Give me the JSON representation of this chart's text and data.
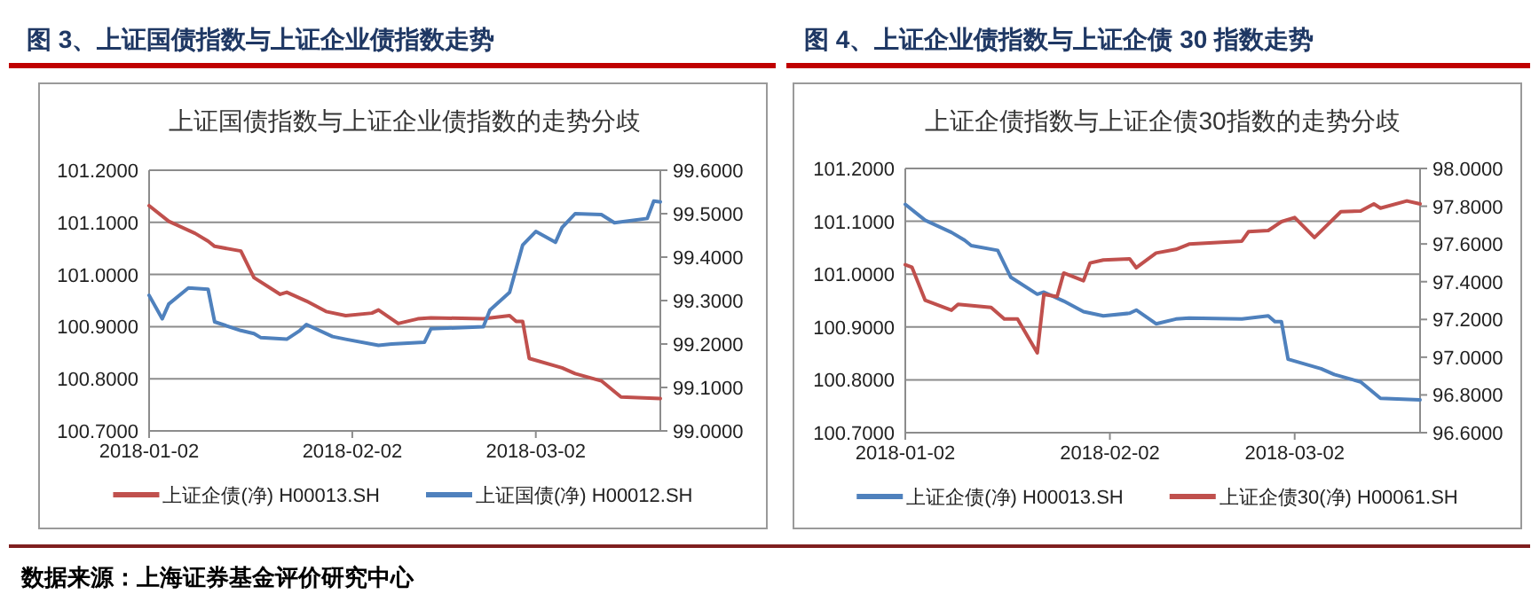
{
  "chart_data": [
    {
      "type": "line",
      "title": "图 3、上证国债指数与上证企业债指数走势",
      "subtitle": "上证国债指数与上证企业债指数的走势分歧",
      "annotations": [
        "数据来源：上海证券基金评价研究中心"
      ],
      "xlim": [
        "2018-01-02",
        "2018-03-21"
      ],
      "xticks": [
        "2018-01-02",
        "2018-02-02",
        "2018-03-02"
      ],
      "ylim": [
        100.7,
        101.2
      ],
      "yticks": [
        {
          "value": 100.7,
          "label": "100.7000"
        },
        {
          "value": 100.8,
          "label": "100.8000"
        },
        {
          "value": 100.9,
          "label": "100.9000"
        },
        {
          "value": 101.0,
          "label": "101.0000"
        },
        {
          "value": 101.1,
          "label": "101.1000"
        },
        {
          "value": 101.2,
          "label": "101.2000"
        }
      ],
      "y2lim": [
        99.0,
        99.6
      ],
      "y2ticks": [
        {
          "value": 99.0,
          "label": "99.0000"
        },
        {
          "value": 99.1,
          "label": "99.1000"
        },
        {
          "value": 99.2,
          "label": "99.2000"
        },
        {
          "value": 99.3,
          "label": "99.3000"
        },
        {
          "value": 99.4,
          "label": "99.4000"
        },
        {
          "value": 99.5,
          "label": "99.5000"
        },
        {
          "value": 99.6,
          "label": "99.6000"
        }
      ],
      "grid": "y",
      "legend": "bottom",
      "series": [
        {
          "name": "上证企债(净) H00013.SH",
          "color": "#c0504d",
          "x": [
            "2018-01-02",
            "2018-01-05",
            "2018-01-09",
            "2018-01-11",
            "2018-01-12",
            "2018-01-16",
            "2018-01-18",
            "2018-01-22",
            "2018-01-23",
            "2018-01-26",
            "2018-01-29",
            "2018-02-01",
            "2018-02-05",
            "2018-02-06",
            "2018-02-09",
            "2018-02-12",
            "2018-02-14",
            "2018-02-22",
            "2018-02-26",
            "2018-02-27",
            "2018-02-28",
            "2018-03-01",
            "2018-03-06",
            "2018-03-08",
            "2018-03-12",
            "2018-03-15",
            "2018-03-21"
          ],
          "values": [
            101.132,
            101.102,
            101.079,
            101.064,
            101.054,
            101.045,
            100.994,
            100.962,
            100.966,
            100.949,
            100.929,
            100.921,
            100.926,
            100.932,
            100.906,
            100.915,
            100.917,
            100.915,
            100.921,
            100.91,
            100.91,
            100.839,
            100.821,
            100.81,
            100.796,
            100.765,
            100.762
          ]
        },
        {
          "name": "上证国债(净) H00012.SH",
          "color": "#4f81bd",
          "axis": "y2",
          "x": [
            "2018-01-02",
            "2018-01-04",
            "2018-01-05",
            "2018-01-08",
            "2018-01-11",
            "2018-01-12",
            "2018-01-16",
            "2018-01-18",
            "2018-01-19",
            "2018-01-23",
            "2018-01-25",
            "2018-01-26",
            "2018-01-30",
            "2018-02-01",
            "2018-02-06",
            "2018-02-08",
            "2018-02-13",
            "2018-02-14",
            "2018-02-22",
            "2018-02-23",
            "2018-02-26",
            "2018-02-28",
            "2018-03-02",
            "2018-03-05",
            "2018-03-06",
            "2018-03-08",
            "2018-03-12",
            "2018-03-14",
            "2018-03-19",
            "2018-03-20",
            "2018-03-21"
          ],
          "values": [
            99.312,
            99.258,
            99.292,
            99.329,
            99.326,
            99.251,
            99.231,
            99.224,
            99.215,
            99.211,
            99.231,
            99.245,
            99.217,
            99.211,
            99.197,
            99.2,
            99.204,
            99.235,
            99.24,
            99.278,
            99.319,
            99.428,
            99.459,
            99.434,
            99.468,
            99.5,
            99.498,
            99.479,
            99.489,
            99.529,
            99.527
          ]
        }
      ]
    },
    {
      "type": "line",
      "title": "图 4、上证企业债指数与上证企债 30 指数走势",
      "subtitle": "上证企债指数与上证企债30指数的走势分歧",
      "xlim": [
        "2018-01-02",
        "2018-03-21"
      ],
      "xticks": [
        "2018-01-02",
        "2018-02-02",
        "2018-03-02"
      ],
      "ylim": [
        100.7,
        101.2
      ],
      "yticks": [
        {
          "value": 100.7,
          "label": "100.7000"
        },
        {
          "value": 100.8,
          "label": "100.8000"
        },
        {
          "value": 100.9,
          "label": "100.9000"
        },
        {
          "value": 101.0,
          "label": "101.0000"
        },
        {
          "value": 101.1,
          "label": "101.1000"
        },
        {
          "value": 101.2,
          "label": "101.2000"
        }
      ],
      "y2lim": [
        96.6,
        98.0
      ],
      "y2ticks": [
        {
          "value": 96.6,
          "label": "96.6000"
        },
        {
          "value": 96.8,
          "label": "96.8000"
        },
        {
          "value": 97.0,
          "label": "97.0000"
        },
        {
          "value": 97.2,
          "label": "97.2000"
        },
        {
          "value": 97.4,
          "label": "97.4000"
        },
        {
          "value": 97.6,
          "label": "97.6000"
        },
        {
          "value": 97.8,
          "label": "97.8000"
        },
        {
          "value": 98.0,
          "label": "98.0000"
        }
      ],
      "grid": "y",
      "legend": "bottom",
      "series": [
        {
          "name": "上证企债(净) H00013.SH",
          "color": "#4f81bd",
          "x": [
            "2018-01-02",
            "2018-01-05",
            "2018-01-09",
            "2018-01-11",
            "2018-01-12",
            "2018-01-16",
            "2018-01-18",
            "2018-01-22",
            "2018-01-23",
            "2018-01-26",
            "2018-01-29",
            "2018-02-01",
            "2018-02-05",
            "2018-02-06",
            "2018-02-09",
            "2018-02-12",
            "2018-02-14",
            "2018-02-22",
            "2018-02-26",
            "2018-02-27",
            "2018-02-28",
            "2018-03-01",
            "2018-03-06",
            "2018-03-08",
            "2018-03-12",
            "2018-03-15",
            "2018-03-21"
          ],
          "values": [
            101.132,
            101.102,
            101.079,
            101.064,
            101.054,
            101.045,
            100.994,
            100.962,
            100.966,
            100.949,
            100.929,
            100.921,
            100.926,
            100.932,
            100.906,
            100.915,
            100.917,
            100.915,
            100.921,
            100.91,
            100.91,
            100.839,
            100.821,
            100.81,
            100.796,
            100.765,
            100.762
          ]
        },
        {
          "name": "上证企债30(净) H00061.SH",
          "color": "#c0504d",
          "axis": "y2",
          "x": [
            "2018-01-02",
            "2018-01-03",
            "2018-01-05",
            "2018-01-09",
            "2018-01-10",
            "2018-01-15",
            "2018-01-17",
            "2018-01-19",
            "2018-01-22",
            "2018-01-23",
            "2018-01-25",
            "2018-01-26",
            "2018-01-29",
            "2018-01-30",
            "2018-02-01",
            "2018-02-05",
            "2018-02-06",
            "2018-02-09",
            "2018-02-12",
            "2018-02-14",
            "2018-02-22",
            "2018-02-23",
            "2018-02-26",
            "2018-02-28",
            "2018-03-02",
            "2018-03-05",
            "2018-03-09",
            "2018-03-12",
            "2018-03-14",
            "2018-03-15",
            "2018-03-19",
            "2018-03-21"
          ],
          "values": [
            97.49,
            97.477,
            97.302,
            97.249,
            97.28,
            97.264,
            97.202,
            97.202,
            97.023,
            97.333,
            97.321,
            97.446,
            97.405,
            97.499,
            97.515,
            97.521,
            97.474,
            97.552,
            97.571,
            97.599,
            97.615,
            97.665,
            97.671,
            97.718,
            97.74,
            97.634,
            97.771,
            97.775,
            97.812,
            97.79,
            97.828,
            97.812
          ]
        }
      ]
    }
  ]
}
